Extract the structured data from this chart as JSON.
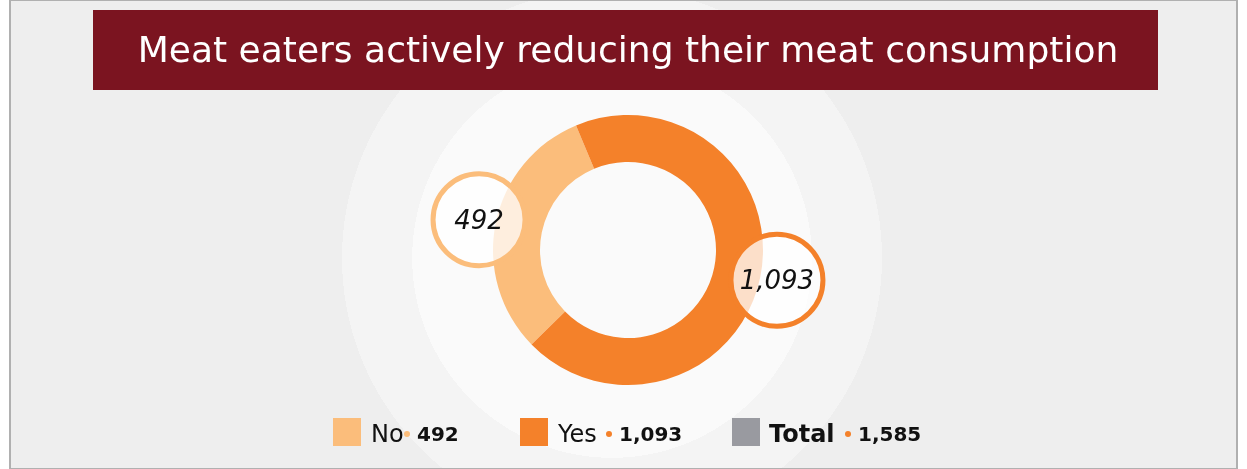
{
  "chart_data": {
    "type": "donut",
    "title": "Meat eaters actively reducing their meat consumption",
    "categories": [
      "No",
      "Yes"
    ],
    "values": [
      492,
      1093
    ],
    "colors": [
      "#fbbd7b",
      "#f4812a"
    ],
    "value_labels": [
      "492",
      "1,093"
    ],
    "legend": "bottom",
    "annotations": [
      "Total",
      "1,585"
    ]
  }
}
